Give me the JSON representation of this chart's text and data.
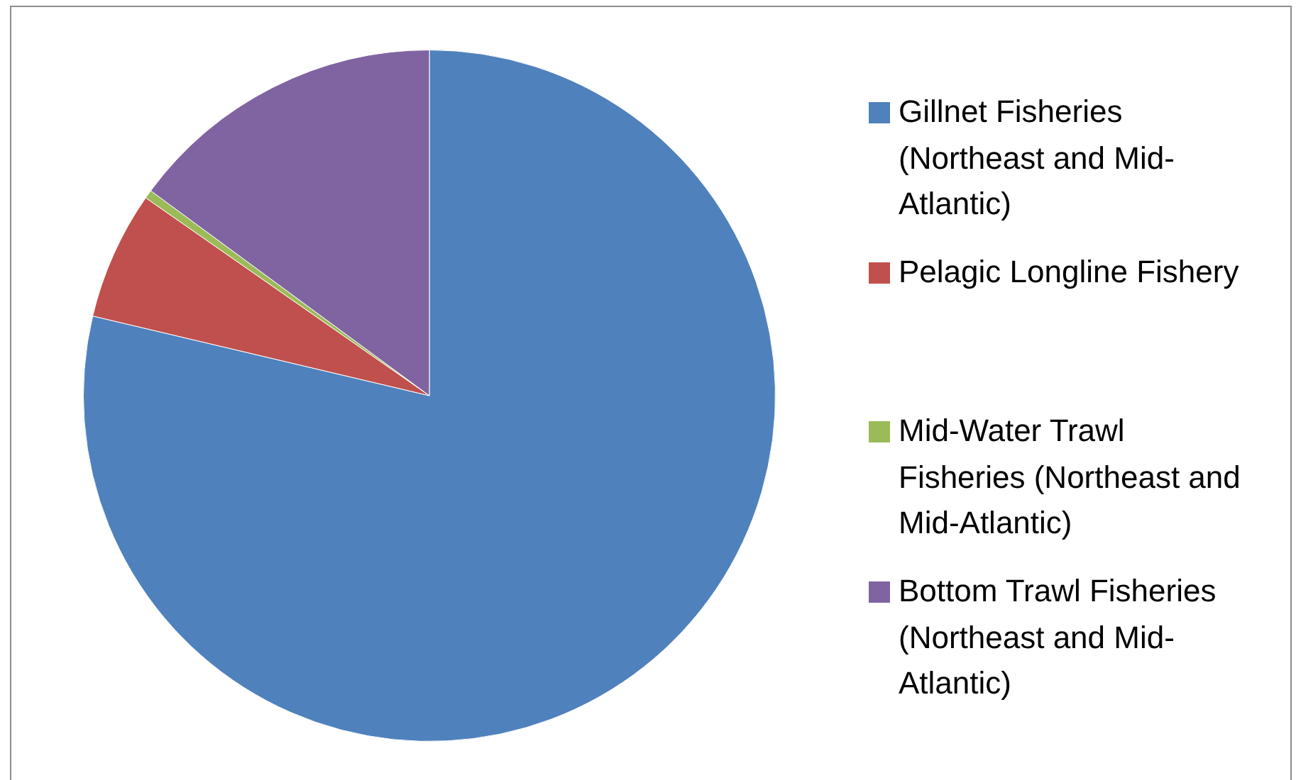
{
  "chart_data": {
    "type": "pie",
    "categories": [
      "Gillnet Fisheries (Northeast and Mid-Atlantic)",
      "Pelagic Longline Fishery",
      "Mid-Water Trawl Fisheries (Northeast and Mid-Atlantic)",
      "Bottom Trawl Fisheries (Northeast and Mid-Atlantic)"
    ],
    "values": [
      78.7,
      6.0,
      0.4,
      14.9
    ],
    "colors": [
      "#4f81bd",
      "#c0504d",
      "#9bbb59",
      "#8064a2"
    ],
    "legend": "right"
  }
}
